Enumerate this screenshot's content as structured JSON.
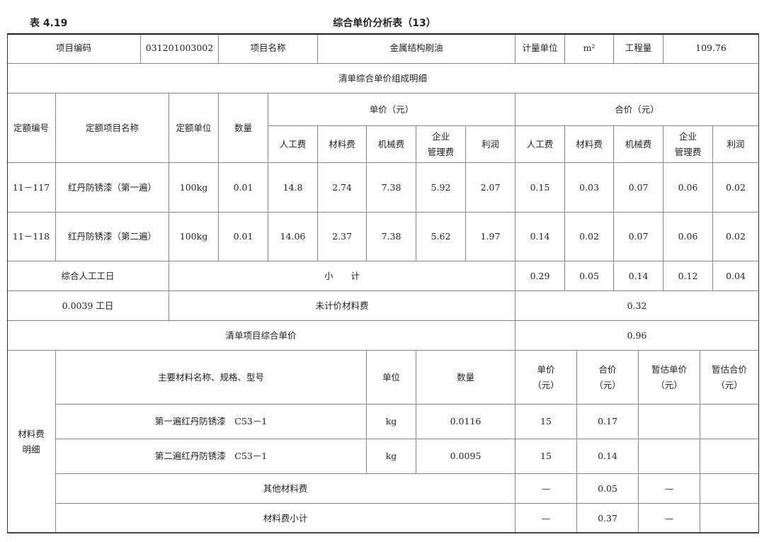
{
  "caption": {
    "table_no": "表 4.19",
    "title": "综合单价分析表（13）"
  },
  "header": {
    "code_label": "项目编码",
    "code": "031201003002",
    "name_label": "项目名称",
    "name": "金属结构刷油",
    "unit_label": "计量单位",
    "unit": "m²",
    "qty_label": "工程量",
    "qty": "109.76"
  },
  "detail_title": "清单综合单价组成明细",
  "columns": {
    "quota_no": "定额编号",
    "quota_name": "定额项目名称",
    "quota_unit": "定额单位",
    "quantity": "数量",
    "unit_price": "单价（元）",
    "total_price": "合价（元）",
    "sub": [
      "人工费",
      "材料费",
      "机械费",
      "企业\n管理费",
      "利润"
    ]
  },
  "rows": [
    [
      "11－117",
      "红丹防锈漆（第一遍）",
      "100kg",
      "0.01",
      "14.8",
      "2.74",
      "7.38",
      "5.92",
      "2.07",
      "0.15",
      "0.03",
      "0.07",
      "0.06",
      "0.02"
    ],
    [
      "11－118",
      "红丹防锈漆（第二遍）",
      "100kg",
      "0.01",
      "14.06",
      "2.37",
      "7.38",
      "5.62",
      "1.97",
      "0.14",
      "0.02",
      "0.07",
      "0.06",
      "0.02"
    ]
  ],
  "subtotal": {
    "labor_day_label": "综合人工工日",
    "label": "小　　计",
    "values": [
      "0.29",
      "0.05",
      "0.14",
      "0.12",
      "0.04"
    ]
  },
  "unpriced": {
    "labor_days": "0.0039 工日",
    "label": "未计价材料费",
    "value": "0.32"
  },
  "unit_price": {
    "label": "清单项目综合单价",
    "value": "0.96"
  },
  "materials": {
    "section_label": "材料费\n明细",
    "headers": [
      "主要材料名称、规格、型号",
      "单位",
      "数量",
      "单价\n（元）",
      "合价\n（元）",
      "暂估单价\n（元）",
      "暂估合价\n（元）"
    ],
    "rows": [
      [
        "第一遍红丹防锈漆　C53－1",
        "kg",
        "0.0116",
        "15",
        "0.17",
        "",
        ""
      ],
      [
        "第二遍红丹防锈漆　C53－1",
        "kg",
        "0.0095",
        "15",
        "0.14",
        "",
        ""
      ]
    ],
    "other": {
      "label": "其他材料费",
      "values": [
        "—",
        "0.05",
        "—",
        ""
      ]
    },
    "subtotal": {
      "label": "材料费小计",
      "values": [
        "—",
        "0.37",
        "—",
        ""
      ]
    }
  }
}
